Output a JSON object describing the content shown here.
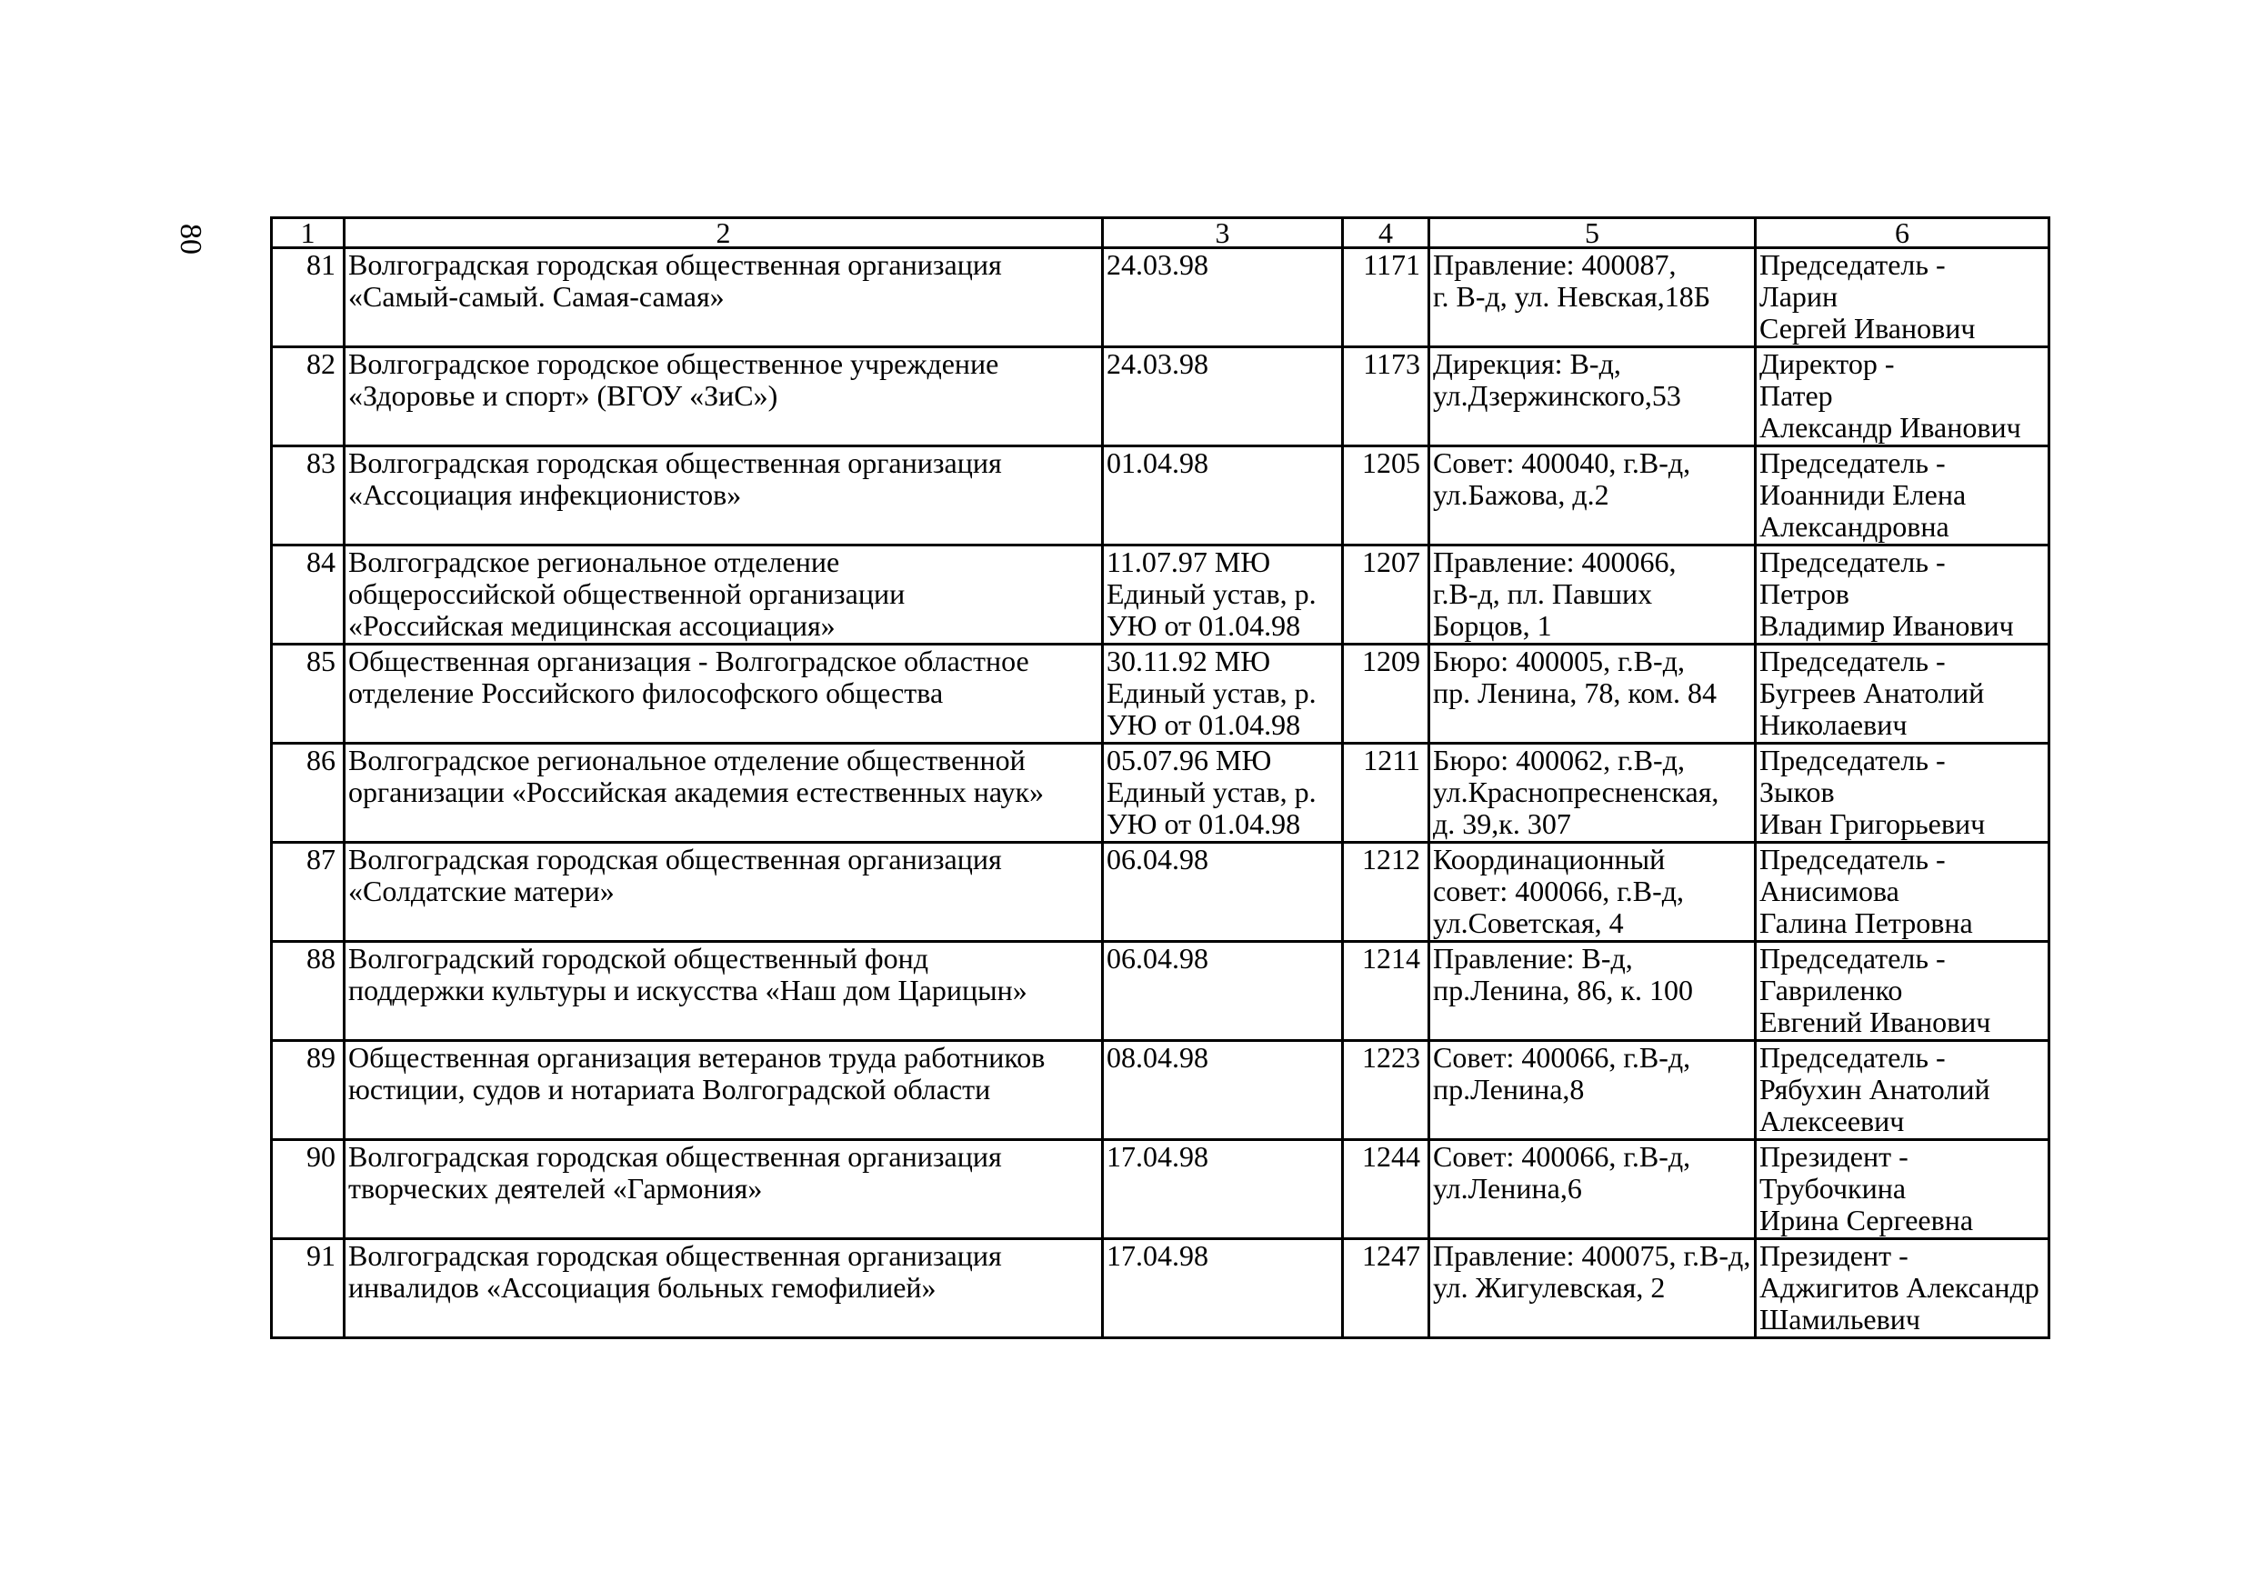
{
  "page_number": "80",
  "table": {
    "headers": [
      "1",
      "2",
      "3",
      "4",
      "5",
      "6"
    ],
    "rows": [
      {
        "no": "81",
        "name": "Волгоградская городская общественная организация\n«Самый-самый. Самая-самая»",
        "date": "24.03.98",
        "reg": "1171",
        "address": "Правление: 400087,\nг. В-д, ул. Невская,18Б",
        "head": "Председатель -\nЛарин\nСергей Иванович"
      },
      {
        "no": "82",
        "name": "Волгоградское городское общественное учреждение\n«Здоровье и спорт» (ВГОУ «ЗиС»)",
        "date": "24.03.98",
        "reg": "1173",
        "address": "Дирекция: В-д,\nул.Дзержинского,53",
        "head": "Директор -\nПатер\nАлександр Иванович"
      },
      {
        "no": "83",
        "name": "Волгоградская городская общественная организация\n«Ассоциация инфекционистов»",
        "date": "01.04.98",
        "reg": "1205",
        "address": "Совет: 400040, г.В-д,\nул.Бажова, д.2",
        "head": "Председатель -\nИоанниди Елена\nАлександровна"
      },
      {
        "no": "84",
        "name": "Волгоградское региональное отделение\nобщероссийской общественной организации\n«Российская медицинская ассоциация»",
        "date": "11.07.97 МЮ\nЕдиный устав, р.\nУЮ от 01.04.98",
        "reg": "1207",
        "address": "Правление: 400066,\nг.В-д,  пл. Павших\nБорцов, 1",
        "head": "Председатель -\nПетров\nВладимир Иванович"
      },
      {
        "no": "85",
        "name": "Общественная организация - Волгоградское областное\nотделение Российского философского общества",
        "date": "30.11.92 МЮ\nЕдиный устав, р.\nУЮ от 01.04.98",
        "reg": "1209",
        "address": "Бюро: 400005, г.В-д,\nпр. Ленина, 78, ком. 84",
        "head": "Председатель -\nБугреев Анатолий\nНиколаевич"
      },
      {
        "no": "86",
        "name": "Волгоградское региональное отделение общественной\nорганизации «Российская академия естественных наук»",
        "date": "05.07.96 МЮ\nЕдиный устав, р.\nУЮ от 01.04.98",
        "reg": "1211",
        "address": "Бюро: 400062, г.В-д,\nул.Краснопресненская,\nд. 39,к. 307",
        "head": "Председатель -\nЗыков\nИван Григорьевич"
      },
      {
        "no": "87",
        "name": "Волгоградская городская общественная организация\n«Солдатские матери»",
        "date": "06.04.98",
        "reg": "1212",
        "address": "Координационный\nсовет: 400066, г.В-д,\nул.Советская, 4",
        "head": "Председатель -\nАнисимова\nГалина Петровна"
      },
      {
        "no": "88",
        "name": "Волгоградский городской общественный фонд\nподдержки культуры и искусства «Наш дом Царицын»",
        "date": "06.04.98",
        "reg": "1214",
        "address": "Правление: В-д,\nпр.Ленина, 86, к. 100",
        "head": "Председатель -\nГавриленко\nЕвгений  Иванович"
      },
      {
        "no": "89",
        "name": "Общественная организация ветеранов труда работников\nюстиции, судов и нотариата Волгоградской области",
        "date": "08.04.98",
        "reg": "1223",
        "address": "Совет: 400066, г.В-д,\nпр.Ленина,8",
        "head": "Председатель -\nРябухин Анатолий\nАлексеевич"
      },
      {
        "no": "90",
        "name": "Волгоградская городская общественная организация\nтворческих деятелей «Гармония»",
        "date": "17.04.98",
        "reg": "1244",
        "address": "Совет: 400066, г.В-д,\nул.Ленина,6",
        "head": "Президент -\nТрубочкина\nИрина Сергеевна"
      },
      {
        "no": "91",
        "name": "Волгоградская городская общественная организация\nинвалидов «Ассоциация больных гемофилией»",
        "date": "17.04.98",
        "reg": "1247",
        "address": "Правление: 400075, г.В-д,\nул. Жигулевская, 2",
        "head": "Президент -\nАджигитов Александр\nШамильевич"
      }
    ]
  }
}
